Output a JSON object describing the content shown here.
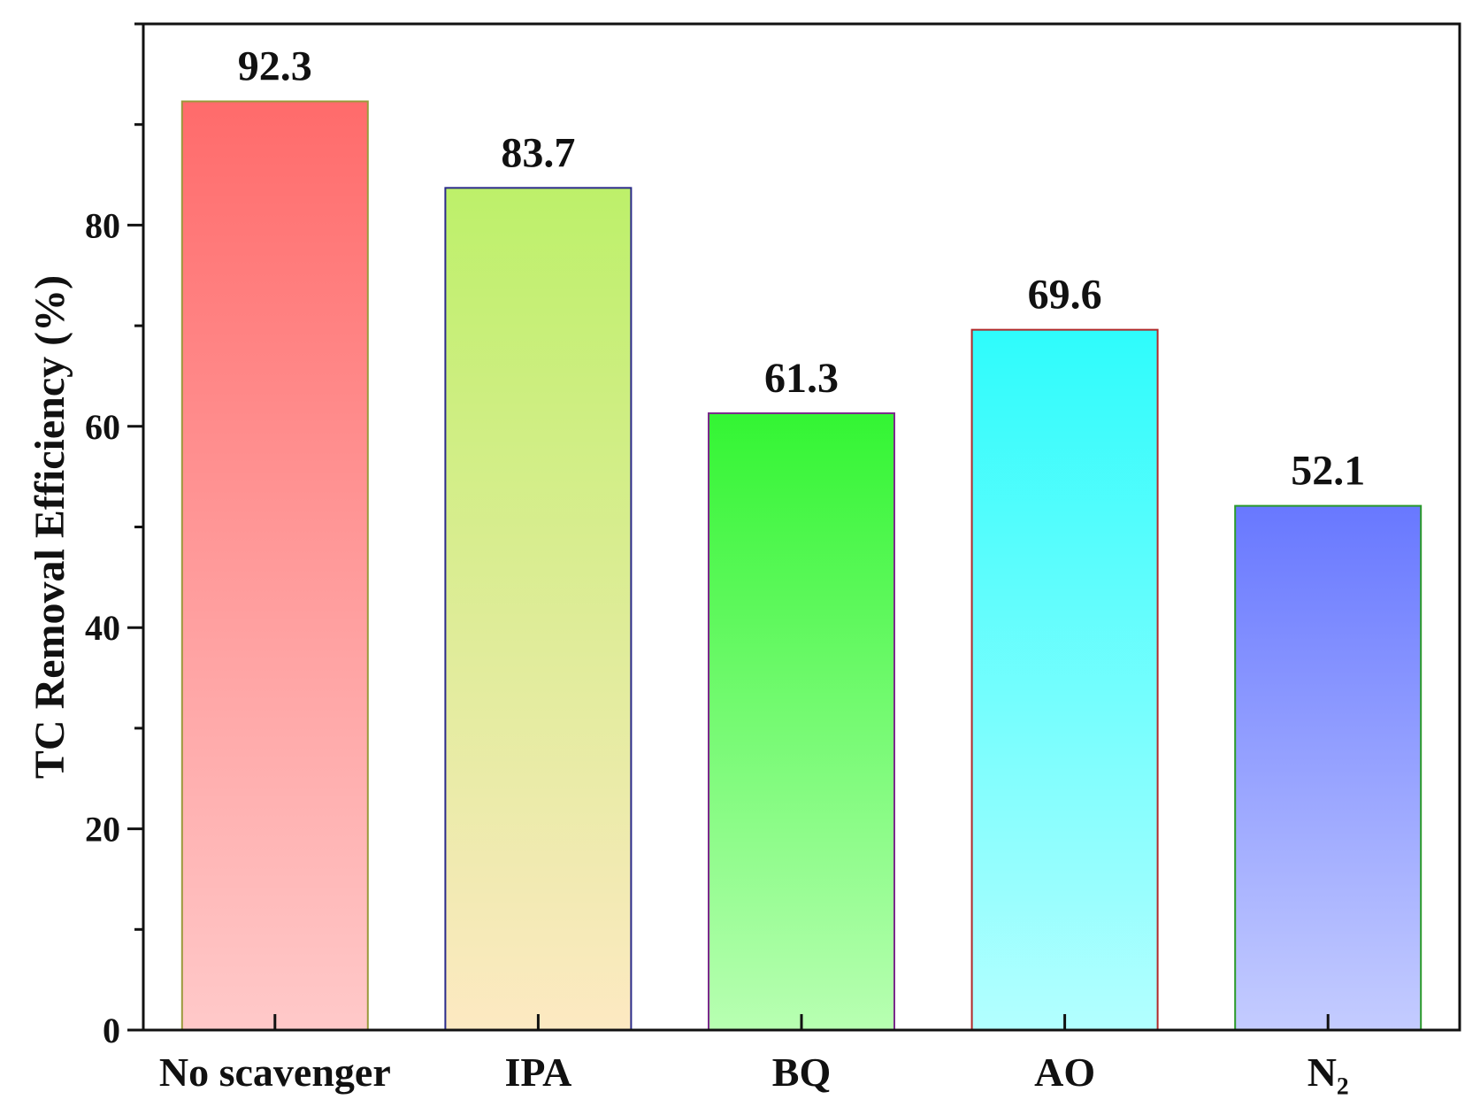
{
  "chart_data": {
    "type": "bar",
    "title": "",
    "xlabel": "",
    "ylabel": "TC Removal Efficiency (%)",
    "ylim": [
      0,
      100
    ],
    "yticks": [
      0,
      20,
      40,
      60,
      80
    ],
    "grid": false,
    "legend": "none",
    "categories": [
      "No scavenger",
      "IPA",
      "BQ",
      "AO",
      "N2"
    ],
    "category_display": [
      "No scavenger",
      "IPA",
      "BQ",
      "AO",
      "N₂"
    ],
    "values": [
      92.3,
      83.7,
      61.3,
      69.6,
      52.1
    ],
    "data_labels": [
      "92.3",
      "83.7",
      "61.3",
      "69.6",
      "52.1"
    ],
    "bar_colors": [
      {
        "top": "#ff6b6b",
        "bottom": "#ffc9c9",
        "border": "#9a9a3c"
      },
      {
        "top": "#bdf06a",
        "bottom": "#fde9c2",
        "border": "#2a2a8a"
      },
      {
        "top": "#33f533",
        "bottom": "#b8ffb2",
        "border": "#7a2a8a"
      },
      {
        "top": "#2efcfc",
        "bottom": "#b3ffff",
        "border": "#b02a2a"
      },
      {
        "top": "#6878ff",
        "bottom": "#c4ccff",
        "border": "#2a9a2a"
      }
    ]
  }
}
